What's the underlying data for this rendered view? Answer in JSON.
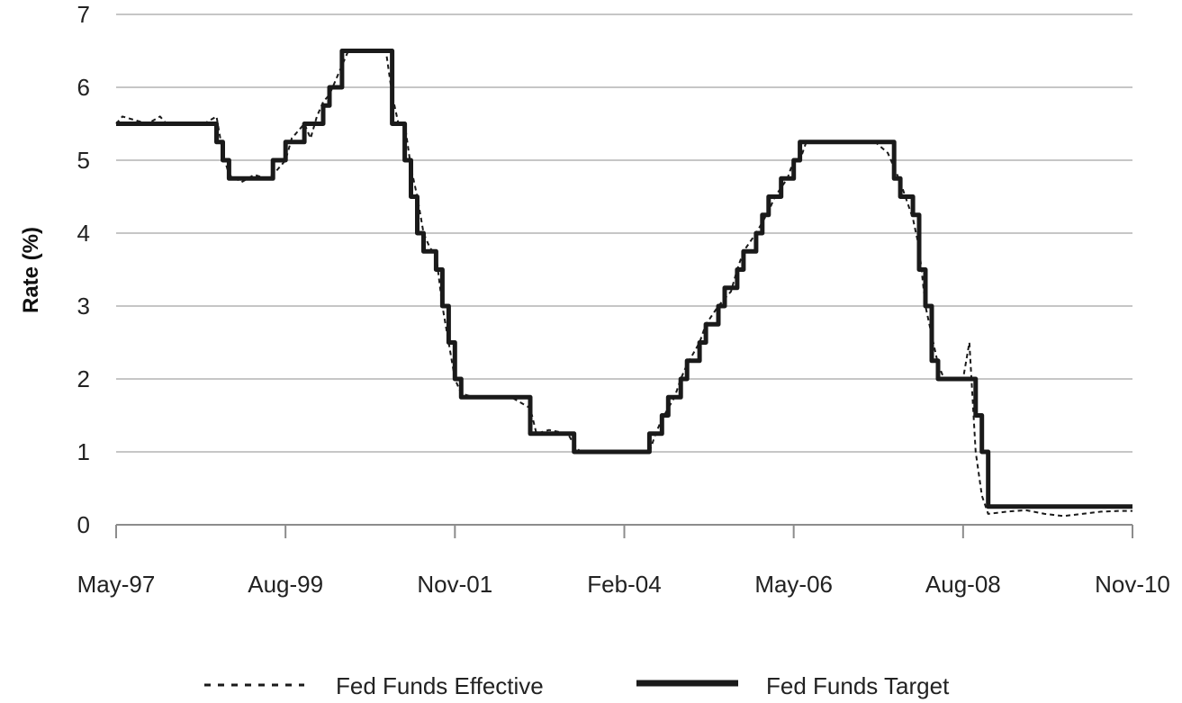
{
  "chart_data": {
    "type": "line",
    "title": "",
    "xlabel": "",
    "ylabel": "Rate (%)",
    "ylim": [
      0,
      7
    ],
    "yticks": [
      0,
      1,
      2,
      3,
      4,
      5,
      6,
      7
    ],
    "x_tick_labels": [
      "May-97",
      "Aug-99",
      "Nov-01",
      "Feb-04",
      "May-06",
      "Aug-08",
      "Nov-10"
    ],
    "x_range": [
      "1997-05",
      "2010-11"
    ],
    "grid": "horizontal",
    "legend_position": "bottom",
    "colors": {
      "line": "#1a1a1a",
      "grid": "#b3b3b3",
      "axis": "#8c8c8c"
    },
    "series": [
      {
        "name": "Fed Funds Effective",
        "style": "dashed",
        "x": [
          "1997-05",
          "1997-06",
          "1997-08",
          "1997-10",
          "1997-12",
          "1998-01",
          "1998-03",
          "1998-05",
          "1998-07",
          "1998-09",
          "1998-10",
          "1998-11",
          "1999-01",
          "1999-03",
          "1999-05",
          "1999-06",
          "1999-08",
          "1999-09",
          "1999-11",
          "1999-12",
          "2000-01",
          "2000-02",
          "2000-03",
          "2000-05",
          "2000-06",
          "2000-08",
          "2000-10",
          "2000-12",
          "2001-01",
          "2001-02",
          "2001-03",
          "2001-04",
          "2001-05",
          "2001-06",
          "2001-07",
          "2001-08",
          "2001-09",
          "2001-10",
          "2001-11",
          "2001-12",
          "2002-02",
          "2002-05",
          "2002-08",
          "2002-11",
          "2002-12",
          "2003-02",
          "2003-05",
          "2003-06",
          "2003-07",
          "2003-12",
          "2004-03",
          "2004-06",
          "2004-07",
          "2004-08",
          "2004-10",
          "2004-11",
          "2004-12",
          "2005-02",
          "2005-03",
          "2005-05",
          "2005-07",
          "2005-08",
          "2005-09",
          "2005-11",
          "2006-01",
          "2006-02",
          "2006-04",
          "2006-05",
          "2006-06",
          "2006-07",
          "2006-12",
          "2007-03",
          "2007-06",
          "2007-08",
          "2007-09",
          "2007-10",
          "2007-12",
          "2008-01",
          "2008-02",
          "2008-03",
          "2008-04",
          "2008-05",
          "2008-07",
          "2008-08",
          "2008-09",
          "2008-10",
          "2008-11",
          "2008-12",
          "2009-03",
          "2009-06",
          "2009-09",
          "2009-12",
          "2010-03",
          "2010-06",
          "2010-09",
          "2010-11"
        ],
        "values": [
          5.5,
          5.6,
          5.55,
          5.5,
          5.6,
          5.5,
          5.5,
          5.5,
          5.5,
          5.6,
          5.1,
          4.8,
          4.7,
          4.8,
          4.75,
          4.8,
          5.0,
          5.3,
          5.5,
          5.3,
          5.6,
          5.8,
          5.9,
          6.3,
          6.5,
          6.5,
          6.5,
          6.5,
          5.9,
          5.5,
          5.5,
          4.9,
          4.5,
          4.0,
          3.8,
          3.7,
          3.0,
          2.5,
          2.0,
          1.8,
          1.75,
          1.75,
          1.75,
          1.6,
          1.25,
          1.3,
          1.25,
          1.1,
          1.0,
          1.0,
          1.0,
          1.0,
          1.25,
          1.45,
          1.75,
          2.0,
          2.2,
          2.5,
          2.75,
          3.0,
          3.2,
          3.5,
          3.75,
          4.0,
          4.3,
          4.5,
          4.75,
          5.0,
          5.0,
          5.25,
          5.25,
          5.25,
          5.25,
          5.1,
          4.9,
          4.7,
          4.2,
          3.8,
          3.0,
          2.6,
          2.2,
          2.0,
          2.0,
          2.0,
          2.5,
          1.0,
          0.4,
          0.15,
          0.18,
          0.2,
          0.15,
          0.12,
          0.15,
          0.18,
          0.19,
          0.19
        ]
      },
      {
        "name": "Fed Funds Target",
        "style": "solid",
        "x": [
          "1997-05",
          "1998-09",
          "1998-10",
          "1998-11",
          "1999-06",
          "1999-08",
          "1999-11",
          "2000-02",
          "2000-03",
          "2000-05",
          "2001-01",
          "2001-02",
          "2001-03",
          "2001-04",
          "2001-05",
          "2001-06",
          "2001-08",
          "2001-09",
          "2001-10",
          "2001-11",
          "2001-12",
          "2002-11",
          "2003-06",
          "2004-06",
          "2004-08",
          "2004-09",
          "2004-11",
          "2004-12",
          "2005-02",
          "2005-03",
          "2005-05",
          "2005-06",
          "2005-08",
          "2005-09",
          "2005-11",
          "2005-12",
          "2006-01",
          "2006-03",
          "2006-05",
          "2006-06",
          "2007-09",
          "2007-10",
          "2007-12",
          "2008-01",
          "2008-02",
          "2008-03",
          "2008-04",
          "2008-10",
          "2008-11",
          "2008-12",
          "2010-11"
        ],
        "values": [
          5.5,
          5.25,
          5.0,
          4.75,
          5.0,
          5.25,
          5.5,
          5.75,
          6.0,
          6.5,
          5.5,
          5.5,
          5.0,
          4.5,
          4.0,
          3.75,
          3.5,
          3.0,
          2.5,
          2.0,
          1.75,
          1.25,
          1.0,
          1.25,
          1.5,
          1.75,
          2.0,
          2.25,
          2.5,
          2.75,
          3.0,
          3.25,
          3.5,
          3.75,
          4.0,
          4.25,
          4.5,
          4.75,
          5.0,
          5.25,
          4.75,
          4.5,
          4.25,
          3.5,
          3.0,
          2.25,
          2.0,
          1.5,
          1.0,
          0.25,
          0.25
        ]
      }
    ],
    "legend": [
      "Fed Funds Effective",
      "Fed Funds Target"
    ]
  }
}
